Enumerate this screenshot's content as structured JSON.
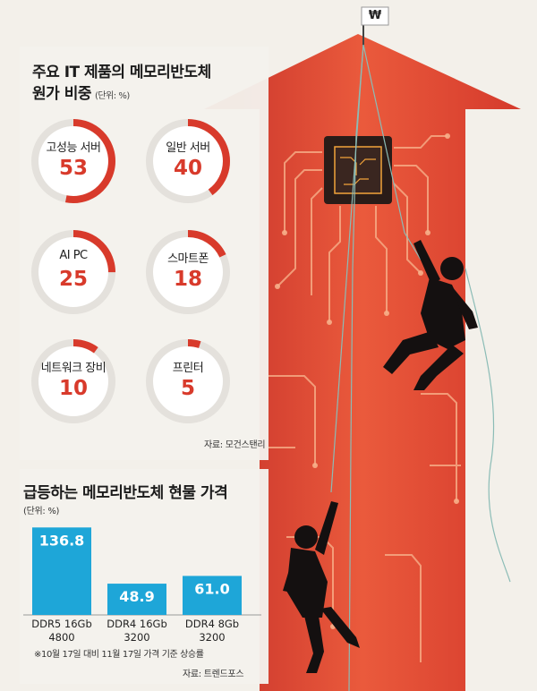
{
  "headline1": "주요 IT 제품의 메모리반도체",
  "headline1_line2": "원가 비중",
  "unit1": "(단위: %)",
  "source1": "자료: 모건스탠리",
  "headline2": "급등하는 메모리반도체 현물 가격",
  "unit2": "(단위: %)",
  "note": "※10월 17일 대비 11월 17일 가격 기준 상승률",
  "source2": "자료: 트렌드포스",
  "flag_symbol": "₩",
  "colors": {
    "accent": "#d83a2b",
    "bar": "#1ea6d8",
    "arrow": "#e24a33"
  },
  "donuts": {
    "type": "donut",
    "items": [
      {
        "label": "고성능 서버",
        "value": 53
      },
      {
        "label": "일반 서버",
        "value": 40
      },
      {
        "label": "AI PC",
        "value": 25
      },
      {
        "label": "스마트폰",
        "value": 18
      },
      {
        "label": "네트워크 장비",
        "value": 10
      },
      {
        "label": "프린터",
        "value": 5
      }
    ]
  },
  "chart_data": {
    "type": "bar",
    "categories": [
      "DDR5 16Gb 4800",
      "DDR4 16Gb 3200",
      "DDR4 8Gb 3200"
    ],
    "category_lines": [
      [
        "DDR5 16Gb",
        "4800"
      ],
      [
        "DDR4 16Gb",
        "3200"
      ],
      [
        "DDR4 8Gb",
        "3200"
      ]
    ],
    "values": [
      136.8,
      48.9,
      61.0
    ],
    "value_labels": [
      "136.8",
      "48.9",
      "61.0"
    ],
    "ylim": [
      0,
      140
    ]
  }
}
